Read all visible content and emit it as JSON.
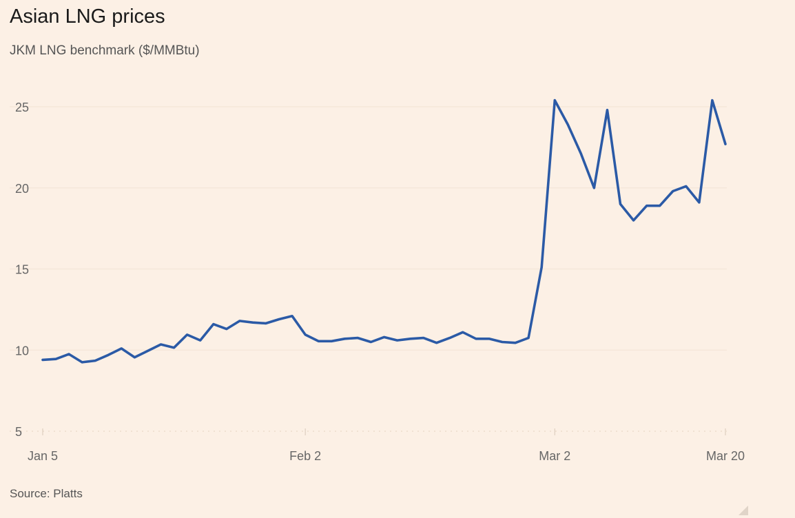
{
  "title": "Asian LNG prices",
  "subtitle": "JKM LNG benchmark ($/MMBtu)",
  "source": "Source: Platts",
  "colors": {
    "background": "#fcf0e5",
    "line": "#2b5aa6",
    "grid": "#f4e6d8",
    "text": "#666666"
  },
  "chart_data": {
    "type": "line",
    "title": "Asian LNG prices",
    "subtitle": "JKM LNG benchmark ($/MMBtu)",
    "xlabel": "",
    "ylabel": "$/MMBtu",
    "ylim": [
      5,
      26
    ],
    "yticks": [
      5,
      10,
      15,
      20,
      25
    ],
    "xticks": [
      {
        "label": "Jan 5",
        "index": 0
      },
      {
        "label": "Feb 2",
        "index": 20
      },
      {
        "label": "Mar 2",
        "index": 39
      },
      {
        "label": "Mar 20",
        "index": 52
      }
    ],
    "grid": true,
    "series": [
      {
        "name": "JKM LNG benchmark",
        "values": [
          9.4,
          9.45,
          9.75,
          9.25,
          9.35,
          9.7,
          10.1,
          9.55,
          9.95,
          10.35,
          10.15,
          10.95,
          10.6,
          11.6,
          11.3,
          11.8,
          11.7,
          11.65,
          11.9,
          12.1,
          10.95,
          10.55,
          10.55,
          10.7,
          10.75,
          10.5,
          10.8,
          10.6,
          10.7,
          10.75,
          10.45,
          10.75,
          11.1,
          10.7,
          10.7,
          10.5,
          10.45,
          10.75,
          15.1,
          25.4,
          23.9,
          22.1,
          20.0,
          24.8,
          19.0,
          18.0,
          18.9,
          18.9,
          19.8,
          20.1,
          19.1,
          25.4,
          22.7
        ]
      }
    ]
  }
}
